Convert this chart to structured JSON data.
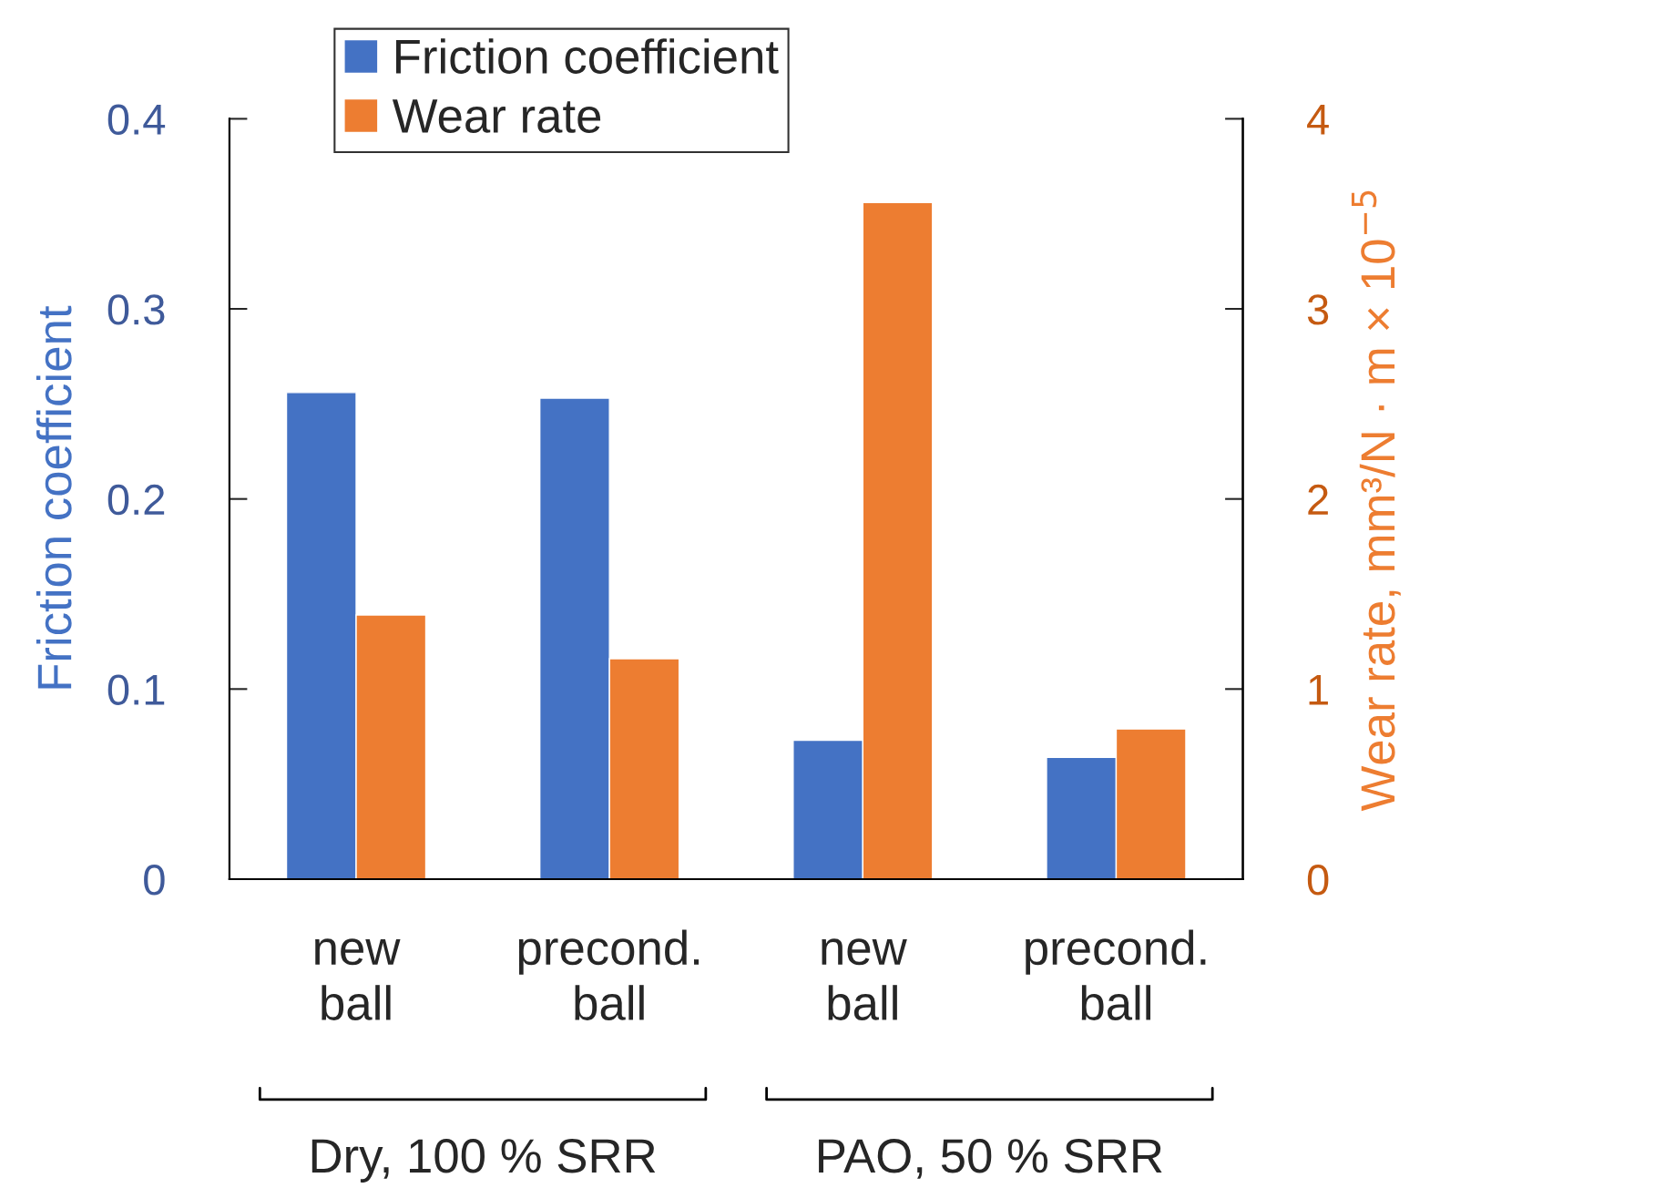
{
  "chart_data": {
    "type": "bar",
    "categories": [
      "new\nball",
      "precond.\nball",
      "new\nball",
      "precond.\nball"
    ],
    "series": [
      {
        "name": "Friction coefficient",
        "color": "#4472c4",
        "values": [
          0.256,
          0.253,
          0.073,
          0.064
        ]
      },
      {
        "name": "Wear rate",
        "color": "#ed7d31",
        "axis": "y2",
        "values": [
          1.39,
          1.16,
          3.56,
          0.79
        ]
      }
    ],
    "ylabel": "Friction coefficient",
    "y2label": "Wear rate, mm³/N · m × 10$^{−5}$",
    "ylim": [
      0,
      0.4
    ],
    "yticks": [
      0,
      0.1,
      0.2,
      0.3,
      0.4
    ],
    "y2lim": [
      0,
      4
    ],
    "y2ticks": [
      0,
      1,
      2,
      3,
      4
    ],
    "annotations": [
      "Dry, 100 % SRR",
      "PAO, 50 % SRR"
    ],
    "legend": "top left",
    "grid": false
  }
}
